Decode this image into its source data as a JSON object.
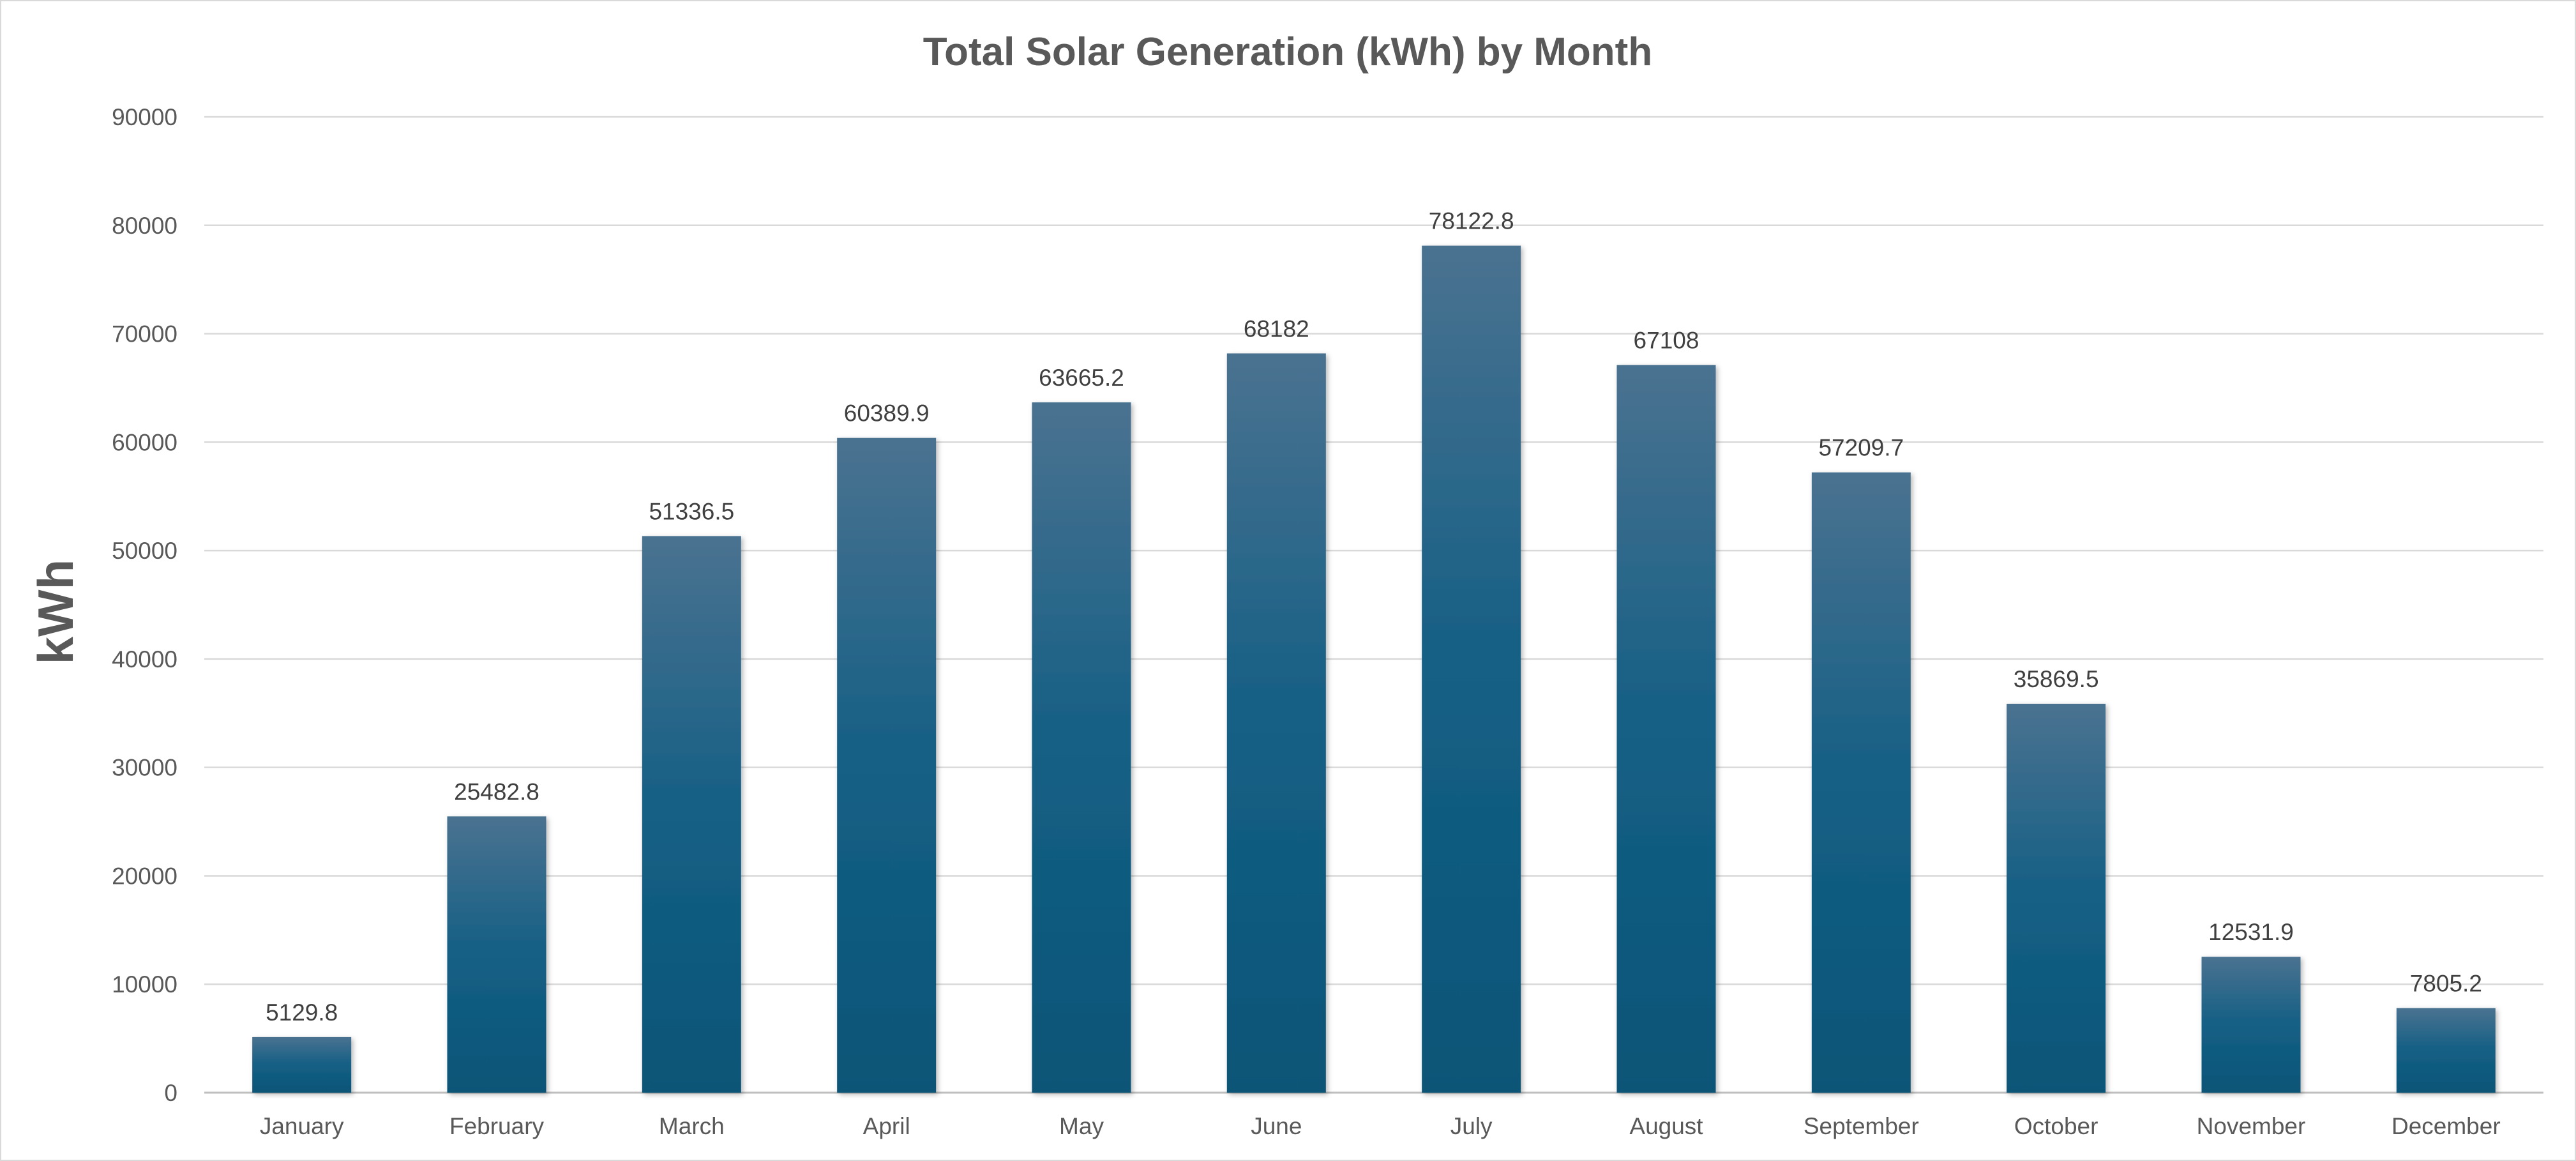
{
  "chart_data": {
    "type": "bar",
    "title": "Total Solar Generation (kWh) by Month",
    "xlabel": "",
    "ylabel": "kWh",
    "categories": [
      "January",
      "February",
      "March",
      "April",
      "May",
      "June",
      "July",
      "August",
      "September",
      "October",
      "November",
      "December"
    ],
    "values": [
      5129.8,
      25482.8,
      51336.5,
      60389.9,
      63665.2,
      68182,
      78122.8,
      67108,
      57209.7,
      35869.5,
      12531.9,
      7805.2
    ],
    "data_labels": [
      "5129.8",
      "25482.8",
      "51336.5",
      "60389.9",
      "63665.2",
      "68182",
      "78122.8",
      "67108",
      "57209.7",
      "35869.5",
      "12531.9",
      "7805.2"
    ],
    "ylim": [
      0,
      90000
    ],
    "yticks": [
      0,
      10000,
      20000,
      30000,
      40000,
      50000,
      60000,
      70000,
      80000,
      90000
    ],
    "ytick_labels": [
      "0",
      "10000",
      "20000",
      "30000",
      "40000",
      "50000",
      "60000",
      "70000",
      "80000",
      "90000"
    ],
    "grid": true,
    "legend": "none",
    "colors": {
      "bar_top": "#4a7290",
      "bar_mid": "#145f85",
      "bar_bottom": "#0b5577",
      "gridline": "#d9d9d9",
      "text": "#595959"
    }
  }
}
